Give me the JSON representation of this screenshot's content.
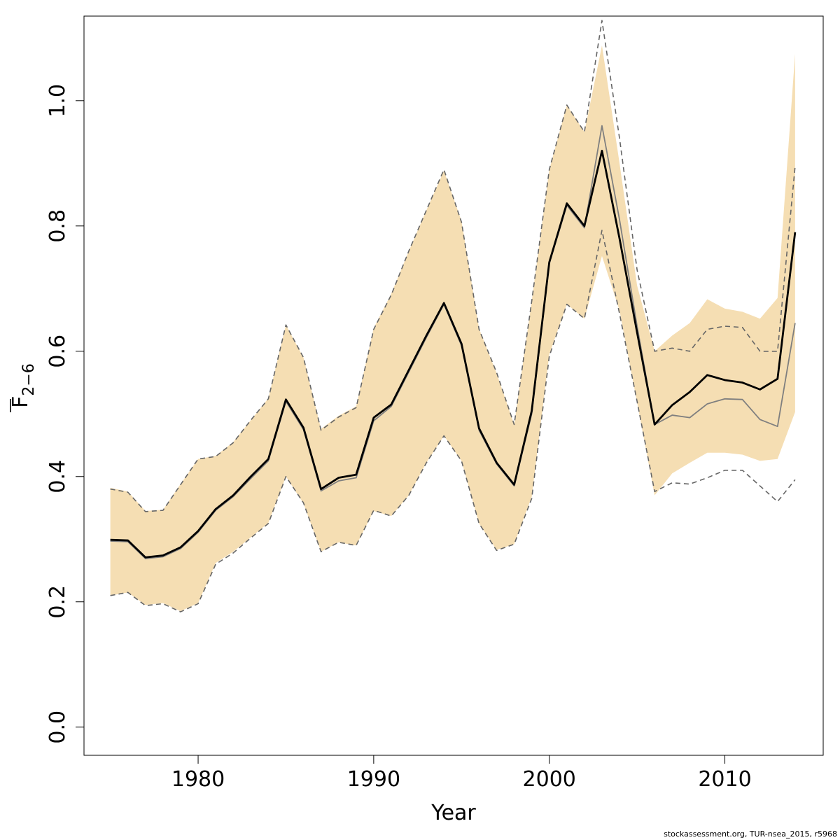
{
  "chart_data": {
    "type": "line",
    "title": "",
    "xlabel": "Year",
    "ylabel": {
      "base": "F",
      "subscript": "2−6"
    },
    "xlim": [
      1973.5,
      2015.6
    ],
    "ylim": [
      -0.045,
      1.135
    ],
    "x_ticks": [
      1980,
      1990,
      2000,
      2010
    ],
    "y_ticks": [
      0.0,
      0.2,
      0.4,
      0.6,
      0.8,
      1.0
    ],
    "y_tick_labels": [
      "0.0",
      "0.2",
      "0.4",
      "0.6",
      "0.8",
      "1.0"
    ],
    "grid": false,
    "legend": "none",
    "colors": {
      "band": "#f5deb3",
      "estimate": "#000000",
      "previous": "#7f7f7f",
      "previous_ci": "#666666"
    },
    "years": [
      1975,
      1976,
      1977,
      1978,
      1979,
      1980,
      1981,
      1982,
      1983,
      1984,
      1985,
      1986,
      1987,
      1988,
      1989,
      1990,
      1991,
      1992,
      1993,
      1994,
      1995,
      1996,
      1997,
      1998,
      1999,
      2000,
      2001,
      2002,
      2003,
      2004,
      2005,
      2006,
      2007,
      2008,
      2009,
      2010,
      2011,
      2012,
      2013,
      2014
    ],
    "series": [
      {
        "role": "band-lower",
        "values": [
          0.21,
          0.215,
          0.195,
          0.198,
          0.185,
          0.198,
          0.262,
          0.28,
          0.303,
          0.326,
          0.4,
          0.357,
          0.28,
          0.295,
          0.29,
          0.345,
          0.337,
          0.37,
          0.422,
          0.465,
          0.425,
          0.325,
          0.283,
          0.292,
          0.368,
          0.595,
          0.675,
          0.652,
          0.752,
          0.665,
          0.518,
          0.37,
          0.405,
          0.422,
          0.438,
          0.438,
          0.435,
          0.425,
          0.428,
          0.503
        ]
      },
      {
        "role": "band-upper",
        "values": [
          0.382,
          0.376,
          0.345,
          0.347,
          0.388,
          0.428,
          0.433,
          0.455,
          0.49,
          0.525,
          0.642,
          0.59,
          0.476,
          0.497,
          0.512,
          0.637,
          0.692,
          0.76,
          0.825,
          0.888,
          0.808,
          0.636,
          0.565,
          0.483,
          0.68,
          0.89,
          0.993,
          0.95,
          1.088,
          0.9,
          0.705,
          0.6,
          0.625,
          0.645,
          0.683,
          0.668,
          0.663,
          0.652,
          0.685,
          1.075
        ]
      },
      {
        "role": "estimate",
        "values": [
          0.299,
          0.298,
          0.271,
          0.274,
          0.287,
          0.313,
          0.348,
          0.37,
          0.4,
          0.428,
          0.523,
          0.478,
          0.38,
          0.398,
          0.403,
          0.494,
          0.515,
          0.57,
          0.625,
          0.677,
          0.612,
          0.477,
          0.422,
          0.387,
          0.505,
          0.742,
          0.836,
          0.8,
          0.92,
          0.78,
          0.63,
          0.483,
          0.514,
          0.535,
          0.562,
          0.554,
          0.55,
          0.539,
          0.556,
          0.79
        ]
      },
      {
        "role": "previous",
        "values": [
          0.297,
          0.296,
          0.269,
          0.272,
          0.285,
          0.311,
          0.346,
          0.368,
          0.397,
          0.425,
          0.52,
          0.475,
          0.377,
          0.393,
          0.398,
          0.489,
          0.512,
          0.567,
          0.622,
          0.675,
          0.609,
          0.474,
          0.42,
          0.385,
          0.5,
          0.74,
          0.833,
          0.797,
          0.96,
          0.81,
          0.64,
          0.483,
          0.498,
          0.494,
          0.516,
          0.524,
          0.523,
          0.491,
          0.48,
          0.645
        ]
      },
      {
        "role": "previous-lower",
        "values": [
          0.21,
          0.215,
          0.194,
          0.197,
          0.184,
          0.197,
          0.26,
          0.278,
          0.302,
          0.325,
          0.4,
          0.358,
          0.28,
          0.295,
          0.29,
          0.346,
          0.337,
          0.37,
          0.422,
          0.465,
          0.425,
          0.325,
          0.282,
          0.292,
          0.365,
          0.592,
          0.675,
          0.652,
          0.793,
          0.66,
          0.52,
          0.376,
          0.39,
          0.388,
          0.398,
          0.41,
          0.41,
          0.385,
          0.36,
          0.395
        ]
      },
      {
        "role": "previous-upper",
        "values": [
          0.38,
          0.375,
          0.344,
          0.346,
          0.387,
          0.428,
          0.432,
          0.454,
          0.49,
          0.524,
          0.642,
          0.59,
          0.474,
          0.495,
          0.51,
          0.635,
          0.69,
          0.76,
          0.825,
          0.89,
          0.806,
          0.635,
          0.566,
          0.483,
          0.68,
          0.89,
          0.993,
          0.95,
          1.128,
          0.94,
          0.73,
          0.6,
          0.605,
          0.6,
          0.635,
          0.64,
          0.638,
          0.6,
          0.6,
          0.895
        ]
      }
    ]
  },
  "footer": "stockassessment.org, TUR-nsea_2015, r5968"
}
